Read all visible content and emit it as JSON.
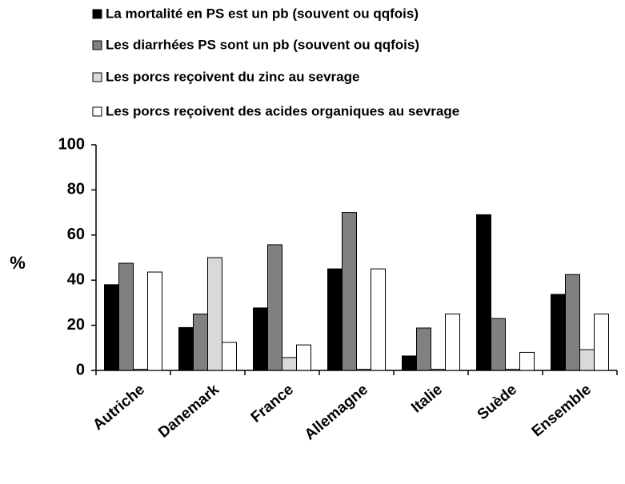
{
  "chart_data": {
    "type": "bar",
    "y_label": "%",
    "categories": [
      "Autriche",
      "Danemark",
      "France",
      "Allemagne",
      "Italie",
      "Suède",
      "Ensemble"
    ],
    "series": [
      {
        "name": "La mortalité en PS est un pb (souvent ou qqfois)",
        "color": "#000000",
        "values": [
          38,
          19,
          27.7,
          45,
          6.4,
          69,
          33.7
        ]
      },
      {
        "name": "Les diarrhées PS sont un pb (souvent ou qqfois)",
        "color": "#808080",
        "values": [
          47.5,
          25,
          55.7,
          70,
          18.8,
          23,
          42.5
        ]
      },
      {
        "name": "Les porcs reçoivent du zinc au sevrage",
        "color": "#d9d9d9",
        "values": [
          0.5,
          50,
          5.7,
          0.5,
          0.5,
          0.5,
          9.2
        ]
      },
      {
        "name": "Les porcs reçoivent des acides organiques au sevrage",
        "color": "#ffffff",
        "values": [
          43.6,
          12.4,
          11.3,
          45,
          25,
          8,
          25
        ]
      }
    ],
    "ylim": [
      0,
      100
    ],
    "yticks": [
      0,
      20,
      40,
      60,
      80,
      100
    ],
    "grid": false,
    "legend": "top"
  }
}
